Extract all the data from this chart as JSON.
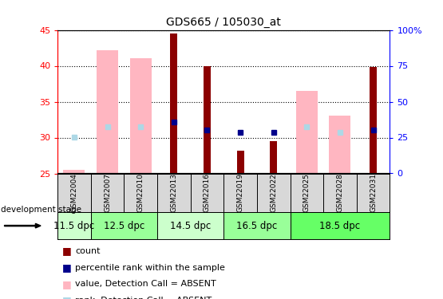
{
  "title": "GDS665 / 105030_at",
  "samples": [
    "GSM22004",
    "GSM22007",
    "GSM22010",
    "GSM22013",
    "GSM22016",
    "GSM22019",
    "GSM22022",
    "GSM22025",
    "GSM22028",
    "GSM22031"
  ],
  "ylim_left": [
    25,
    45
  ],
  "ylim_right": [
    0,
    100
  ],
  "yticks_left": [
    25,
    30,
    35,
    40,
    45
  ],
  "yticks_right": [
    0,
    25,
    50,
    75,
    100
  ],
  "yticklabels_right": [
    "0",
    "25",
    "50",
    "75",
    "100%"
  ],
  "red_bars": {
    "GSM22004": null,
    "GSM22007": null,
    "GSM22010": null,
    "GSM22013": 44.5,
    "GSM22016": 40.0,
    "GSM22019": 28.2,
    "GSM22022": 29.5,
    "GSM22025": null,
    "GSM22028": null,
    "GSM22031": 39.8
  },
  "pink_bars": {
    "GSM22004": 25.5,
    "GSM22007": 42.2,
    "GSM22010": 41.1,
    "GSM22013": null,
    "GSM22016": null,
    "GSM22019": null,
    "GSM22022": null,
    "GSM22025": 36.5,
    "GSM22028": 33.1,
    "GSM22031": null
  },
  "blue_squares": {
    "GSM22004": null,
    "GSM22007": null,
    "GSM22010": null,
    "GSM22013": 32.2,
    "GSM22016": 31.1,
    "GSM22019": 30.7,
    "GSM22022": 30.7,
    "GSM22025": null,
    "GSM22028": null,
    "GSM22031": 31.1
  },
  "lightblue_squares": {
    "GSM22004": 30.1,
    "GSM22007": 31.5,
    "GSM22010": 31.5,
    "GSM22013": null,
    "GSM22016": null,
    "GSM22019": null,
    "GSM22022": null,
    "GSM22025": 31.5,
    "GSM22028": 30.7,
    "GSM22031": null
  },
  "development_stages": [
    {
      "label": "11.5 dpc",
      "samples": [
        "GSM22004"
      ],
      "color": "#ccffcc"
    },
    {
      "label": "12.5 dpc",
      "samples": [
        "GSM22007",
        "GSM22010"
      ],
      "color": "#99ff99"
    },
    {
      "label": "14.5 dpc",
      "samples": [
        "GSM22013",
        "GSM22016"
      ],
      "color": "#ccffcc"
    },
    {
      "label": "16.5 dpc",
      "samples": [
        "GSM22019",
        "GSM22022"
      ],
      "color": "#99ff99"
    },
    {
      "label": "18.5 dpc",
      "samples": [
        "GSM22025",
        "GSM22028",
        "GSM22031"
      ],
      "color": "#66ff66"
    }
  ],
  "base_value": 25,
  "color_red": "#8B0000",
  "color_pink": "#FFB6C1",
  "color_blue": "#00008B",
  "color_lightblue": "#ADD8E6",
  "pink_bar_width": 0.65,
  "red_bar_width": 0.22,
  "legend_items": [
    {
      "color": "#8B0000",
      "label": "count"
    },
    {
      "color": "#00008B",
      "label": "percentile rank within the sample"
    },
    {
      "color": "#FFB6C1",
      "label": "value, Detection Call = ABSENT"
    },
    {
      "color": "#ADD8E6",
      "label": "rank, Detection Call = ABSENT"
    }
  ]
}
